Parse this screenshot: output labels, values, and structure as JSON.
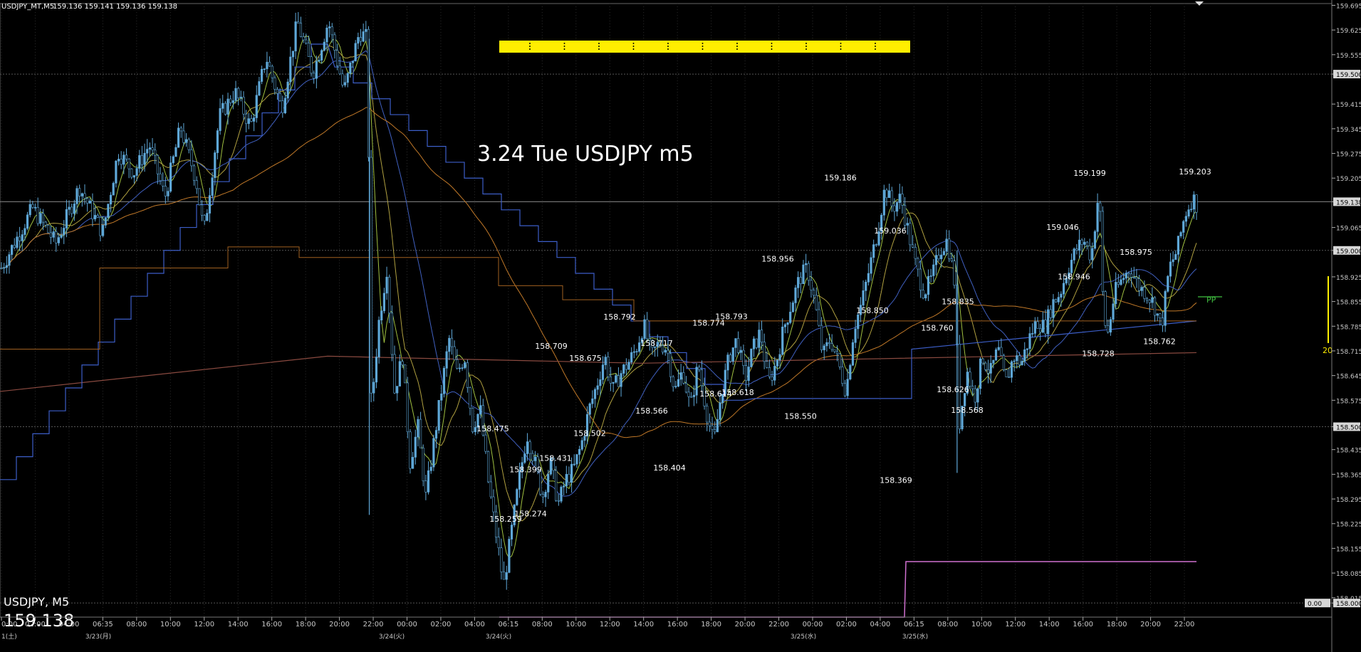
{
  "header": {
    "symbol_info": "USDJPY_MT,M5",
    "ohlc": "159.136 159.141 159.136 159.138"
  },
  "title_text": "3.24 Tue USDJPY m5",
  "symbol_label": "USDJPY, M5",
  "big_price": "159.138",
  "pp_label": "PP",
  "side_number": "20",
  "price_box_label": "0.00",
  "colors": {
    "background": "#000000",
    "candle": "#5fa8d8",
    "grid": "#3a3a3a",
    "yellow": "#ffee00",
    "magenta": "#d070d0",
    "orange": "#c07828",
    "maroon": "#8a4a40",
    "blue_step": "#3c5ec8",
    "olive": "#a0a040",
    "green": "#40c040",
    "text": "#ffffff",
    "axis_text": "#c8c8c8"
  },
  "chart_data": {
    "type": "candlestick",
    "timeframe": "M5",
    "ylim": [
      157.96,
      159.7
    ],
    "price_axis_labels": [
      "159.695",
      "159.625",
      "159.555",
      "159.500",
      "159.415",
      "159.345",
      "159.275",
      "159.205",
      "159.138",
      "159.065",
      "159.000",
      "158.925",
      "158.855",
      "158.785",
      "158.715",
      "158.645",
      "158.575",
      "158.500",
      "158.435",
      "158.365",
      "158.295",
      "158.225",
      "158.155",
      "158.085",
      "158.015",
      "158.000"
    ],
    "highlighted_levels": [
      "159.500",
      "159.138",
      "159.000",
      "158.500",
      "158.000"
    ],
    "time_axis_labels": [
      "0:00",
      "02:00",
      "04:00",
      "06:35",
      "08:00",
      "10:00",
      "12:00",
      "14:00",
      "16:00",
      "18:00",
      "20:00",
      "22:00",
      "00:00",
      "02:00",
      "04:00",
      "06:15",
      "08:00",
      "10:00",
      "12:00",
      "14:00",
      "16:00",
      "18:00",
      "20:00",
      "22:00",
      "00:00",
      "02:00",
      "04:00",
      "06:15",
      "08:00",
      "10:00",
      "12:00",
      "14:00",
      "16:00",
      "18:00",
      "20:00",
      "22:00"
    ],
    "date_labels": [
      "1(土)",
      "3/23(月)",
      "3/24(火)",
      "3/24(火)",
      "3/25(水)",
      "3/25(水)"
    ],
    "annotations": [
      {
        "label": "159.186",
        "price": 159.186
      },
      {
        "label": "159.199",
        "price": 159.199
      },
      {
        "label": "159.203",
        "price": 159.203
      },
      {
        "label": "159.036",
        "price": 159.036
      },
      {
        "label": "159.046",
        "price": 159.046
      },
      {
        "label": "158.975",
        "price": 158.975
      },
      {
        "label": "158.956",
        "price": 158.956
      },
      {
        "label": "158.946",
        "price": 158.946
      },
      {
        "label": "158.850",
        "price": 158.85
      },
      {
        "label": "158.835",
        "price": 158.835
      },
      {
        "label": "158.792",
        "price": 158.792
      },
      {
        "label": "158.793",
        "price": 158.793
      },
      {
        "label": "158.774",
        "price": 158.774
      },
      {
        "label": "158.760",
        "price": 158.76
      },
      {
        "label": "158.717",
        "price": 158.717
      },
      {
        "label": "158.709",
        "price": 158.709
      },
      {
        "label": "158.675",
        "price": 158.675
      },
      {
        "label": "158.728",
        "price": 158.728
      },
      {
        "label": "158.762",
        "price": 158.762
      },
      {
        "label": "158.618",
        "price": 158.618
      },
      {
        "label": "158.614",
        "price": 158.614
      },
      {
        "label": "158.626",
        "price": 158.626
      },
      {
        "label": "158.566",
        "price": 158.566
      },
      {
        "label": "158.568",
        "price": 158.568
      },
      {
        "label": "158.550",
        "price": 158.55
      },
      {
        "label": "158.502",
        "price": 158.502
      },
      {
        "label": "158.475",
        "price": 158.475
      },
      {
        "label": "158.431",
        "price": 158.431
      },
      {
        "label": "158.404",
        "price": 158.404
      },
      {
        "label": "158.399",
        "price": 158.399
      },
      {
        "label": "158.369",
        "price": 158.369
      },
      {
        "label": "158.274",
        "price": 158.274
      },
      {
        "label": "158.259",
        "price": 158.259
      }
    ],
    "price_path": [
      [
        0,
        158.95
      ],
      [
        8,
        159.12
      ],
      [
        14,
        159.02
      ],
      [
        20,
        159.18
      ],
      [
        26,
        159.05
      ],
      [
        30,
        159.28
      ],
      [
        34,
        159.22
      ],
      [
        38,
        159.3
      ],
      [
        42,
        159.15
      ],
      [
        46,
        159.35
      ],
      [
        50,
        159.2
      ],
      [
        52,
        159.05
      ],
      [
        56,
        159.38
      ],
      [
        60,
        159.45
      ],
      [
        64,
        159.35
      ],
      [
        68,
        159.55
      ],
      [
        72,
        159.4
      ],
      [
        76,
        159.65
      ],
      [
        80,
        159.5
      ],
      [
        84,
        159.65
      ],
      [
        86,
        159.55
      ],
      [
        88,
        159.45
      ],
      [
        92,
        159.62
      ],
      [
        94,
        159.6
      ],
      [
        95,
        158.55
      ],
      [
        97,
        158.8
      ],
      [
        99,
        158.95
      ],
      [
        101,
        158.6
      ],
      [
        103,
        158.7
      ],
      [
        105,
        158.4
      ],
      [
        107,
        158.5
      ],
      [
        109,
        158.3
      ],
      [
        111,
        158.45
      ],
      [
        113,
        158.6
      ],
      [
        115,
        158.75
      ],
      [
        117,
        158.65
      ],
      [
        119,
        158.7
      ],
      [
        121,
        158.5
      ],
      [
        123,
        158.55
      ],
      [
        125,
        158.35
      ],
      [
        127,
        158.2
      ],
      [
        129,
        158.05
      ],
      [
        131,
        158.2
      ],
      [
        133,
        158.35
      ],
      [
        135,
        158.48
      ],
      [
        137,
        158.4
      ],
      [
        139,
        158.3
      ],
      [
        141,
        158.4
      ],
      [
        143,
        158.28
      ],
      [
        145,
        158.35
      ],
      [
        147,
        158.38
      ],
      [
        149,
        158.45
      ],
      [
        151,
        158.55
      ],
      [
        153,
        158.62
      ],
      [
        155,
        158.7
      ],
      [
        157,
        158.6
      ],
      [
        159,
        158.65
      ],
      [
        161,
        158.68
      ],
      [
        163,
        158.72
      ],
      [
        165,
        158.79
      ],
      [
        167,
        158.7
      ],
      [
        169,
        158.74
      ],
      [
        171,
        158.72
      ],
      [
        173,
        158.6
      ],
      [
        175,
        158.66
      ],
      [
        177,
        158.55
      ],
      [
        179,
        158.68
      ],
      [
        181,
        158.55
      ],
      [
        183,
        158.45
      ],
      [
        185,
        158.6
      ],
      [
        187,
        158.7
      ],
      [
        189,
        158.75
      ],
      [
        191,
        158.63
      ],
      [
        193,
        158.72
      ],
      [
        195,
        158.77
      ],
      [
        197,
        158.62
      ],
      [
        199,
        158.68
      ],
      [
        201,
        158.78
      ],
      [
        203,
        158.85
      ],
      [
        205,
        158.92
      ],
      [
        207,
        158.95
      ],
      [
        209,
        158.85
      ],
      [
        211,
        158.7
      ],
      [
        213,
        158.75
      ],
      [
        215,
        158.68
      ],
      [
        217,
        158.6
      ],
      [
        219,
        158.78
      ],
      [
        221,
        158.85
      ],
      [
        223,
        158.95
      ],
      [
        225,
        159.05
      ],
      [
        227,
        159.18
      ],
      [
        229,
        159.12
      ],
      [
        231,
        159.15
      ],
      [
        233,
        159.05
      ],
      [
        235,
        158.95
      ],
      [
        237,
        158.88
      ],
      [
        239,
        158.92
      ],
      [
        241,
        159.0
      ],
      [
        243,
        159.03
      ],
      [
        245,
        158.9
      ],
      [
        246,
        158.5
      ],
      [
        248,
        158.66
      ],
      [
        250,
        158.58
      ],
      [
        252,
        158.7
      ],
      [
        254,
        158.65
      ],
      [
        256,
        158.72
      ],
      [
        258,
        158.62
      ],
      [
        260,
        158.7
      ],
      [
        262,
        158.68
      ],
      [
        264,
        158.75
      ],
      [
        266,
        158.8
      ],
      [
        268,
        158.78
      ],
      [
        270,
        158.85
      ],
      [
        272,
        158.88
      ],
      [
        274,
        158.95
      ],
      [
        276,
        159.0
      ],
      [
        278,
        159.03
      ],
      [
        280,
        158.98
      ],
      [
        282,
        159.18
      ],
      [
        283,
        158.85
      ],
      [
        284,
        158.75
      ],
      [
        286,
        158.88
      ],
      [
        288,
        158.92
      ],
      [
        290,
        158.95
      ],
      [
        292,
        158.9
      ],
      [
        294,
        158.88
      ],
      [
        296,
        158.85
      ],
      [
        298,
        158.78
      ],
      [
        300,
        158.95
      ],
      [
        302,
        159.0
      ],
      [
        304,
        159.1
      ],
      [
        306,
        159.15
      ],
      [
        307,
        159.13
      ]
    ]
  }
}
